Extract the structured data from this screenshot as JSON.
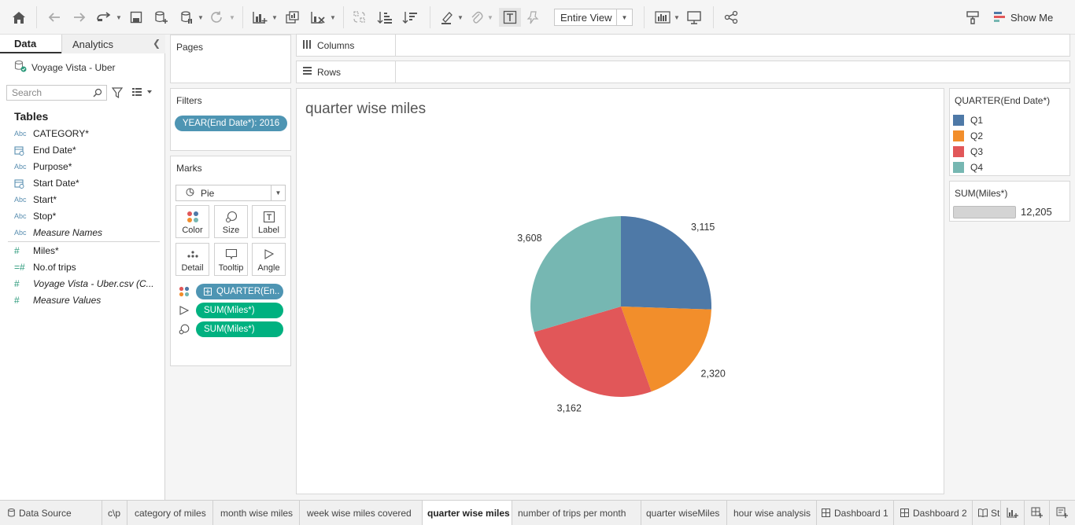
{
  "toolbar": {
    "view_option": "Entire View",
    "show_me_label": "Show Me",
    "icons": [
      "home-icon",
      "undo-icon",
      "redo-icon",
      "redo-dropdown-icon",
      "save-icon",
      "new-datasource-icon",
      "pause-updates-icon",
      "refresh-icon",
      "new-worksheet-icon",
      "duplicate-sheet-icon",
      "clear-sheet-icon",
      "swap-axes-icon",
      "sort-ascending-icon",
      "sort-descending-icon",
      "highlight-icon",
      "group-icon",
      "show-labels-icon",
      "fix-axes-icon",
      "fit-dropdown",
      "show-cards-icon",
      "presentation-mode-icon",
      "share-icon",
      "format-painter-icon",
      "show-me-icon"
    ]
  },
  "data_pane": {
    "tab_data": "Data",
    "tab_analytics": "Analytics",
    "datasource_name": "Voyage Vista - Uber",
    "search_placeholder": "Search",
    "tables_heading": "Tables",
    "dimensions": [
      {
        "icon": "Abc",
        "name": "CATEGORY*"
      },
      {
        "icon": "calendar",
        "name": "End Date*"
      },
      {
        "icon": "Abc",
        "name": "Purpose*"
      },
      {
        "icon": "calendar",
        "name": "Start Date*"
      },
      {
        "icon": "Abc",
        "name": "Start*"
      },
      {
        "icon": "Abc",
        "name": "Stop*"
      },
      {
        "icon": "Abc",
        "name": "Measure Names"
      }
    ],
    "measures": [
      {
        "icon": "#",
        "name": "Miles*"
      },
      {
        "icon": "=#",
        "name": "No.of trips"
      },
      {
        "icon": "#",
        "name": "Voyage Vista - Uber.csv (C..."
      },
      {
        "icon": "#",
        "name": "Measure Values"
      }
    ]
  },
  "cards": {
    "pages_title": "Pages",
    "filters_title": "Filters",
    "filter_pill": "YEAR(End Date*): 2016",
    "marks_title": "Marks",
    "mark_type": "Pie",
    "mark_buttons": [
      "Color",
      "Size",
      "Label",
      "Detail",
      "Tooltip",
      "Angle"
    ],
    "mark_pills": [
      "QUARTER(En..",
      "SUM(Miles*)",
      "SUM(Miles*)"
    ]
  },
  "shelves": {
    "columns_label": "Columns",
    "rows_label": "Rows"
  },
  "sheet": {
    "title": "quarter wise miles"
  },
  "chart_data": {
    "type": "pie",
    "title": "quarter wise miles",
    "categories": [
      "Q1",
      "Q2",
      "Q3",
      "Q4"
    ],
    "values": [
      3115,
      2320,
      3162,
      3608
    ],
    "labels": [
      "3,115",
      "2,320",
      "3,162",
      "3,608"
    ],
    "colors": [
      "#4e79a7",
      "#f28e2b",
      "#e15759",
      "#76b7b2"
    ],
    "start": "12 o'clock, clockwise"
  },
  "legends": {
    "color_title": "QUARTER(End Date*)",
    "color_items": [
      {
        "label": "Q1",
        "color": "#4e79a7"
      },
      {
        "label": "Q2",
        "color": "#f28e2b"
      },
      {
        "label": "Q3",
        "color": "#e15759"
      },
      {
        "label": "Q4",
        "color": "#76b7b2"
      }
    ],
    "size_title": "SUM(Miles*)",
    "size_value": "12,205"
  },
  "bottom_tabs": [
    {
      "label": "Data Source",
      "icon": "datasource-icon"
    },
    {
      "label": "c\\p"
    },
    {
      "label": "category of miles"
    },
    {
      "label": "month wise miles"
    },
    {
      "label": "week wise miles covered"
    },
    {
      "label": "quarter wise miles",
      "active": true
    },
    {
      "label": "number of trips per month"
    },
    {
      "label": "quarter wiseMiles"
    },
    {
      "label": "hour wise analysis"
    },
    {
      "label": "Dashboard 1",
      "icon": "dashboard-icon"
    },
    {
      "label": "Dashboard 2",
      "icon": "dashboard-icon"
    },
    {
      "label": "St",
      "icon": "story-icon"
    }
  ]
}
